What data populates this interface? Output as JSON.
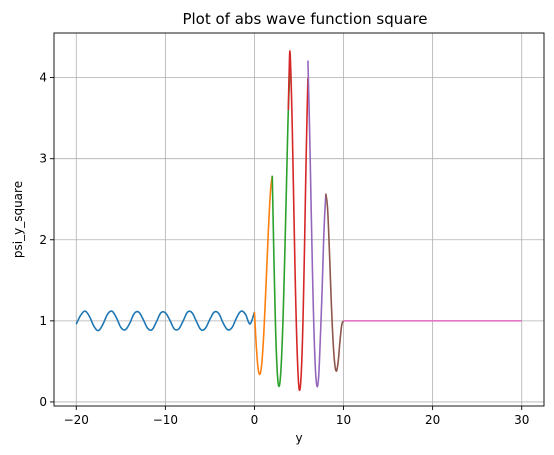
{
  "chart_data": {
    "type": "line",
    "title": "Plot of abs wave function square",
    "xlabel": "y",
    "ylabel": "psi_y_square",
    "xlim": [
      -22.5,
      32.5
    ],
    "ylim": [
      -0.05,
      4.55
    ],
    "xticks": [
      -20,
      -10,
      0,
      10,
      20,
      30
    ],
    "xtick_labels": [
      "−20",
      "−10",
      "0",
      "10",
      "20",
      "30"
    ],
    "yticks": [
      0,
      1,
      2,
      3,
      4
    ],
    "ytick_labels": [
      "0",
      "1",
      "2",
      "3",
      "4"
    ],
    "grid": true,
    "legend": "none",
    "series": [
      {
        "color": "#1f77b4",
        "x": [
          -20,
          -19.5,
          -19,
          -18.5,
          -18,
          -17.5,
          -17,
          -16.5,
          -16,
          -15.5,
          -15,
          -14.5,
          -14,
          -13.5,
          -13,
          -12.5,
          -12,
          -11.5,
          -11,
          -10.5,
          -10,
          -9.5,
          -9,
          -8.5,
          -8,
          -7.5,
          -7,
          -6.5,
          -6,
          -5.5,
          -5,
          -4.5,
          -4,
          -3.5,
          -3,
          -2.5,
          -2,
          -1.5,
          -1,
          -0.5,
          0
        ],
        "y": [
          0.96,
          1.07,
          1.12,
          1.05,
          0.93,
          0.88,
          0.96,
          1.08,
          1.12,
          1.04,
          0.92,
          0.89,
          0.97,
          1.09,
          1.11,
          1.02,
          0.91,
          0.89,
          0.99,
          1.1,
          1.1,
          1.01,
          0.9,
          0.9,
          1.0,
          1.11,
          1.1,
          0.99,
          0.89,
          0.91,
          1.02,
          1.11,
          1.09,
          0.97,
          0.89,
          0.92,
          1.04,
          1.12,
          1.08,
          0.96,
          1.11
        ]
      },
      {
        "color": "#ff7f0e",
        "x": [
          0,
          0.2,
          0.4,
          0.6,
          0.8,
          1.0,
          1.2,
          1.4,
          1.6,
          1.8,
          2.0
        ],
        "y": [
          1.11,
          0.7,
          0.42,
          0.34,
          0.45,
          0.75,
          1.2,
          1.7,
          2.2,
          2.6,
          2.79
        ]
      },
      {
        "color": "#2ca02c",
        "x": [
          2.0,
          2.2,
          2.4,
          2.6,
          2.8,
          3.0,
          3.2,
          3.4,
          3.6,
          3.8,
          4.0
        ],
        "y": [
          2.79,
          1.7,
          0.8,
          0.3,
          0.2,
          0.45,
          1.0,
          1.8,
          2.7,
          3.6,
          4.1
        ]
      },
      {
        "color": "#d62728",
        "x": [
          3.8,
          3.9,
          4.0,
          4.2,
          4.4,
          4.6,
          4.8,
          5.0,
          5.2,
          5.4,
          5.6,
          5.8,
          6.0
        ],
        "y": [
          3.6,
          4.1,
          4.31,
          3.6,
          2.5,
          1.4,
          0.6,
          0.17,
          0.25,
          0.8,
          1.8,
          3.0,
          4.0
        ]
      },
      {
        "color": "#9467bd",
        "x": [
          6.0,
          6.2,
          6.4,
          6.6,
          6.8,
          7.0,
          7.2,
          7.4,
          7.6,
          7.8,
          8.0
        ],
        "y": [
          4.21,
          3.3,
          2.2,
          1.2,
          0.5,
          0.2,
          0.3,
          0.8,
          1.4,
          2.1,
          2.55
        ]
      },
      {
        "color": "#8c564b",
        "x": [
          8.0,
          8.2,
          8.4,
          8.6,
          8.8,
          9.0,
          9.2,
          9.4,
          9.6,
          9.8,
          10.0
        ],
        "y": [
          2.57,
          2.4,
          1.9,
          1.3,
          0.8,
          0.48,
          0.38,
          0.5,
          0.75,
          0.95,
          1.0
        ]
      },
      {
        "color": "#e377c2",
        "x": [
          10.0,
          30.0
        ],
        "y": [
          1.0,
          1.0
        ]
      }
    ]
  }
}
